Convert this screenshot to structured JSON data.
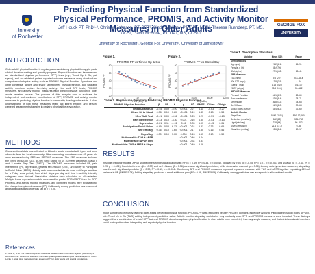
{
  "header": {
    "title": "Predicting Physical Function from Standardized Physical Performance, PROMIS, and Activity Monitor Measures in Older Adults",
    "authors": "Jeff Houck PT, PhD¹·², Christen Johnson, PT, DPT³, Cindy Zablotny, PT, DPT, NCS³, Theresa Rushdeep, PT, MS, GCS³, Gavin McBride, PT, DPT, MS, CCS¹·³",
    "affiliations": "University of Rochester¹, George Fox University², University of Jamestown³",
    "logo_left": {
      "line1": "University",
      "line2": "of Rochester"
    },
    "logo_right": {
      "line1": "GEORGE FOX",
      "line2": "UNIVERSITY"
    }
  },
  "intro": {
    "heading": "INTRODUCTION",
    "text": "Older adults' physical function is regularly assessed during physical therapy to guide clinical decision making and quantify progress. Physical function can be measured as standardized physical performance (SPP) tests (e.g., Timed Up & Go, gait speed), and as validated patient reported outcome measures using standardized computerized adaptive testing such as PROMIS Physical Function. Symptoms and other contextual factors also shape self-reported physical function, and wearable activity monitors capture free-living activity. How well SPP tests, PROMIS measures, and activity monitor measures each predict physical function in older adults remains unclear. The purpose of this analysis was to evaluate the independent and combined contributions of SPP, PROMIS, and activity monitor measures to predicting physical function in community-dwelling older adults. A clear understanding of how these measures relate will inform efficient and person-centered assessment strategies in geriatric physical therapy practice."
  },
  "methods": {
    "heading": "METHODS",
    "text": "Cross-sectional data was collected on 86 older adults recruited with flyers and word of mouth from the local community. After consenting, volunteers over 65 years old were assessed using SPP and PROMIS measures. The SPP measures included the Timed Up & Go (TUG), 30-sec Sit to Stand (STS), 10 meter walk test (10MWT), and 2-minute Step Test (2MST). The PROMIS measures included PF, pain interference (PI), depression, general self-efficacy (GSE), and Ability to Participate in Social Roles (APSR). Activity data was recorded via hip worn ActiGraph monitors for a 7 day wear period, from which steps per day and time in activity intensity categories were derived. Descriptive statistics were calculated for all variables. Multiple linear regression models were used to predict PROMIS-PF from the SPP, PROMIS, and activity monitor measures, and combined models were evaluated for the change in explained variance (R²). Collinearity among predictors was examined, and statistical significance was set at p < 0.05."
  },
  "references": {
    "heading": "References",
    "text": "1. Cella D, et al. The Patient-Reported Outcomes Measurement Information System (PROMIS). 2. Bohannon RW. Reference values for the timed up and go test: a descriptive meta-analysis. 3. Tudor-Locke C, et al. How many steps/day are enough? For older adults and special populations."
  },
  "figure1": {
    "caption": "Figure 1.",
    "title": "PROMIS PF vs Timed Up & Go",
    "xlabel": "TUG (sec)",
    "ylabel": "PROMIS PF"
  },
  "figure2": {
    "caption": "Figure 2.",
    "title": "PROMIS PF vs Steps/Day",
    "xlabel": "Steps/Day",
    "ylabel": "PROMIS PF"
  },
  "chart_data": [
    {
      "type": "scatter",
      "title": "PROMIS PF vs Timed Up & Go",
      "xlabel": "TUG (sec)",
      "ylabel": "PROMIS PF",
      "xlim": [
        4,
        20
      ],
      "ylim": [
        20,
        60
      ],
      "xticks": [
        4,
        8,
        12,
        16,
        20
      ],
      "yticks": [
        20,
        30,
        40,
        50,
        60
      ],
      "series": [
        {
          "name": "Observed",
          "color": "#4a6fa5",
          "x": [
            6.2,
            7.0,
            7.5,
            8.1,
            8.4,
            8.9,
            9.3,
            9.8,
            10.1,
            10.6,
            11.2,
            11.8,
            12.4,
            13.0,
            13.9,
            14.6,
            15.8,
            17.2
          ],
          "y": [
            52,
            49,
            47,
            50,
            45,
            46,
            44,
            43,
            41,
            42,
            40,
            38,
            39,
            36,
            35,
            34,
            32,
            30
          ]
        },
        {
          "name": "Fit",
          "color": "#c0392b",
          "x": [
            5,
            18
          ],
          "y": [
            51,
            31
          ]
        }
      ]
    },
    {
      "type": "scatter",
      "title": "PROMIS PF vs Steps/Day",
      "xlabel": "Steps/Day",
      "ylabel": "PROMIS PF",
      "xlim": [
        0,
        12000
      ],
      "ylim": [
        20,
        60
      ],
      "xticks": [
        0,
        4000,
        8000,
        12000
      ],
      "yticks": [
        20,
        30,
        40,
        50,
        60
      ],
      "series": [
        {
          "name": "Observed",
          "color": "#4a6fa5",
          "x": [
            1200,
            1900,
            2500,
            3100,
            3600,
            4200,
            4700,
            5200,
            5800,
            6300,
            6900,
            7400,
            8100,
            8800,
            9500,
            10300
          ],
          "y": [
            33,
            36,
            35,
            39,
            38,
            41,
            40,
            42,
            44,
            43,
            45,
            46,
            47,
            49,
            48,
            51
          ]
        },
        {
          "name": "Fit",
          "color": "#c0392b",
          "x": [
            1000,
            10500
          ],
          "y": [
            34,
            50
          ]
        }
      ]
    }
  ],
  "table2": {
    "caption": "Table 2. Regression Summary Predicting PROMIS Physical Function",
    "headers": [
      "PROMIS Physical Function",
      "β",
      "SE",
      "t",
      "p",
      "R²",
      "RMSE",
      "CI low",
      "CI high"
    ],
    "rows": [
      [
        "Timed Up and Go",
        "-0.45",
        "0.09",
        "-5.00",
        "<0.001",
        "0.27",
        "6.11",
        "-0.63",
        "-0.27"
      ],
      [
        "30-sec Sit to Stand",
        "0.38",
        "0.10",
        "3.80",
        "<0.001",
        "0.19",
        "6.43",
        "0.18",
        "0.58"
      ],
      [
        "10-m Walk Test",
        "-0.41",
        "0.09",
        "-4.56",
        "<0.001",
        "0.23",
        "6.27",
        "-0.59",
        "-0.23"
      ],
      [
        "Pain Interference",
        "-0.33",
        "0.10",
        "-3.30",
        "0.001",
        "0.16",
        "6.55",
        "-0.53",
        "-0.13"
      ],
      [
        "Depression",
        "-0.21",
        "0.11",
        "-1.91",
        "0.06",
        "0.05",
        "6.97",
        "-0.43",
        "0.01"
      ],
      [
        "Participation Social Roles",
        "0.49",
        "0.08",
        "6.13",
        "<0.001",
        "0.34",
        "5.81",
        "0.33",
        "0.65"
      ],
      [
        "Self Efficacy",
        "0.36",
        "0.10",
        "3.60",
        "<0.001",
        "0.17",
        "6.50",
        "0.16",
        "0.56"
      ],
      [
        "Steps/Day",
        "0.30",
        "0.10",
        "3.00",
        "0.004",
        "0.13",
        "6.63",
        "0.10",
        "0.50"
      ],
      [
        "Multivariable: TUG + APSR",
        "",
        "",
        "",
        "<0.001",
        "0.46",
        "5.24",
        "",
        ""
      ],
      [
        "Multivariable: APSR only",
        "",
        "",
        "",
        "<0.001",
        "0.34",
        "5.81",
        "",
        ""
      ],
      [
        "Multivariable: TUG + APSR + Steps",
        "",
        "",
        "",
        "<0.001",
        "0.49",
        "5.09",
        "",
        ""
      ]
    ]
  },
  "table1": {
    "caption": "Table 1. Descriptive Statistics",
    "headers": [
      "Variable",
      "Mean (SD)",
      "Range"
    ],
    "rows": [
      {
        "group": true,
        "cells": [
          "Demographics",
          "",
          ""
        ]
      },
      {
        "group": false,
        "cells": [
          "Age (yrs)",
          "74.2 (6.1)",
          "65–91"
        ]
      },
      {
        "group": false,
        "cells": [
          "Female, n (%)",
          "58 (67%)",
          ""
        ]
      },
      {
        "group": false,
        "cells": [
          "BMI (kg/m²)",
          "27.1 (4.8)",
          "18–41"
        ]
      },
      {
        "group": true,
        "cells": [
          "SPP Measures",
          "",
          ""
        ]
      },
      {
        "group": false,
        "cells": [
          "TUG (sec)",
          "9.6 (2.7)",
          "5.8–18.4"
        ]
      },
      {
        "group": false,
        "cells": [
          "30s STS (reps)",
          "12.8 (3.9)",
          "4–24"
        ]
      },
      {
        "group": false,
        "cells": [
          "10MWT (m/s)",
          "1.18 (0.24)",
          "0.6–1.7"
        ]
      },
      {
        "group": false,
        "cells": [
          "2MST (steps)",
          "78.3 (19.6)",
          "31–122"
        ]
      },
      {
        "group": true,
        "cells": [
          "PROMIS Measures",
          "",
          ""
        ]
      },
      {
        "group": false,
        "cells": [
          "Physical Function",
          "44.1 (6.9)",
          "28–60"
        ]
      },
      {
        "group": false,
        "cells": [
          "Pain Interference",
          "52.6 (8.4)",
          "38–71"
        ]
      },
      {
        "group": false,
        "cells": [
          "Depression",
          "46.8 (7.2)",
          "34–68"
        ]
      },
      {
        "group": false,
        "cells": [
          "Self Efficacy",
          "51.9 (8.0)",
          "30–68"
        ]
      },
      {
        "group": false,
        "cells": [
          "Social Roles (APSR)",
          "53.4 (8.2)",
          "32–69"
        ]
      },
      {
        "group": true,
        "cells": [
          "Activity Monitor",
          "",
          ""
        ]
      },
      {
        "group": false,
        "cells": [
          "Steps/Day",
          "5842 (2611)",
          "890–12,460"
        ]
      },
      {
        "group": false,
        "cells": [
          "Sedentary (min/day)",
          "562 (88)",
          "351–780"
        ]
      },
      {
        "group": false,
        "cells": [
          "Light (min/day)",
          "228 (64)",
          "96–402"
        ]
      },
      {
        "group": false,
        "cells": [
          "MVPA (min/day)",
          "21.4 (17.3)",
          "0–88"
        ]
      },
      {
        "group": false,
        "cells": [
          "Wear time (hr/day)",
          "13.6 (1.4)",
          "10–17"
        ]
      }
    ]
  },
  "results": {
    "heading": "RESULTS",
    "text": "In single predictor models, APSR showed the strongest association with PF (β = 0.49, R² = 0.34, p < 0.001), followed by TUG (β = -0.45, R² = 0.27, p < 0.001) and 10MWT (β = -0.41, R² = 0.23, p < 0.001). Pain interference (β = -0.33) and self efficacy (β = 0.36) were also significant predictors, while depression was not (p = 0.06). Among activity monitor measures, steps/day was the only significant predictor (β = 0.30, R² = 0.13, p = 0.004). Combining SPP and PROMIS measures improved explained variance, with TUG and APSR together explaining 46% of variance in PF (RMSE 5.24). Adding steps/day produced a small additional gain (R² = 0.49, RMSE 5.09). Collinearity among predictors was acceptable in all combined models."
  },
  "conclusion": {
    "heading": "CONCLUSION",
    "text": "In our sample of community-dwelling older adults perceived physical function (PROMIS-PF) was explained best by PROMIS domains, especially Ability to Participate in Social Roles (APSR), with Timed Up & Go (TUG) adding independent predictive value. Activity monitor steps/day contributed only modestly once SPP and PROMIS measures were included. These findings suggest that a combination of a brief SPP test and PROMIS domains captures physical function in older adults more completely than any single measure, and that clinicians should consider social participation when interpreting self-reported physical function."
  }
}
